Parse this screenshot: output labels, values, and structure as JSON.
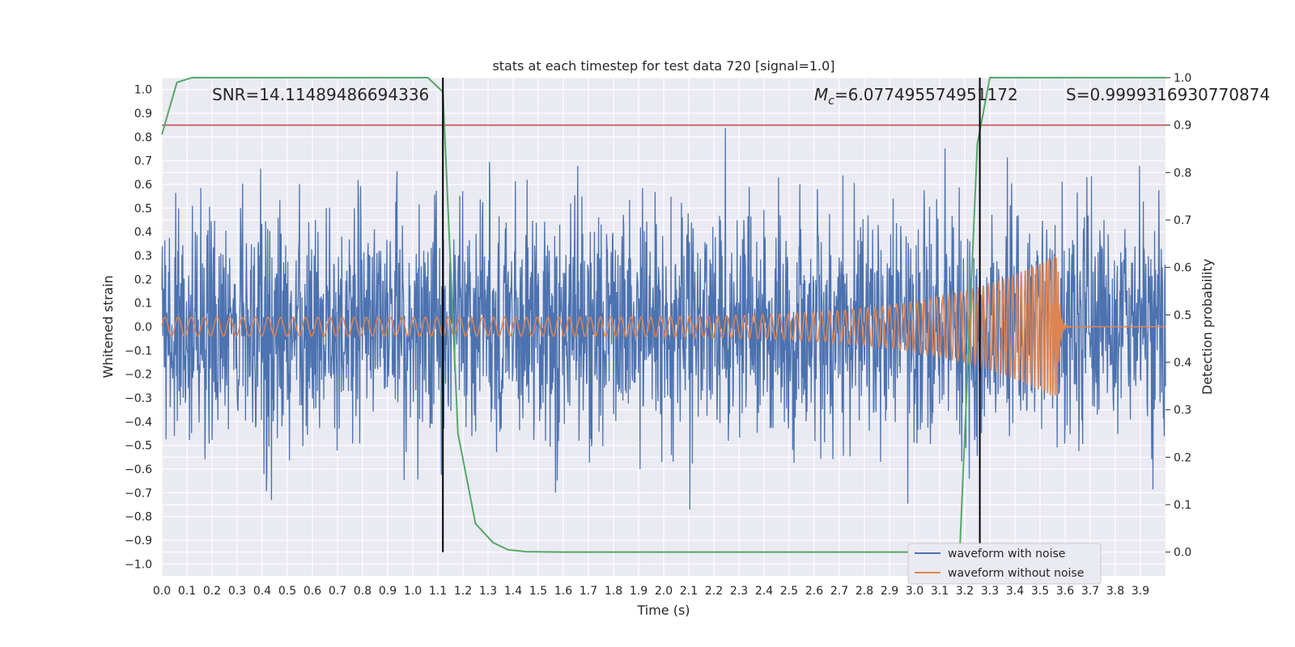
{
  "chart_data": {
    "type": "line",
    "title": "stats at each timestep for test data 720 [signal=1.0]",
    "xlabel": "Time (s)",
    "ylabel_left": "Whitened strain",
    "ylabel_right": "Detection probability",
    "xlim": [
      0.0,
      4.0
    ],
    "ylim_left": [
      -1.05,
      1.05
    ],
    "ylim_right": [
      -0.05,
      1.0
    ],
    "x_ticks": [
      "0.0",
      "0.1",
      "0.2",
      "0.3",
      "0.4",
      "0.5",
      "0.6",
      "0.7",
      "0.8",
      "0.9",
      "1.0",
      "1.1",
      "1.2",
      "1.3",
      "1.4",
      "1.5",
      "1.6",
      "1.7",
      "1.8",
      "1.9",
      "2.0",
      "2.1",
      "2.2",
      "2.3",
      "2.4",
      "2.5",
      "2.6",
      "2.7",
      "2.8",
      "2.9",
      "3.0",
      "3.1",
      "3.2",
      "3.3",
      "3.4",
      "3.5",
      "3.6",
      "3.7",
      "3.8",
      "3.9"
    ],
    "y_ticks_left": [
      "1.0",
      "0.9",
      "0.8",
      "0.7",
      "0.6",
      "0.5",
      "0.4",
      "0.3",
      "0.2",
      "0.1",
      "0.0",
      "−0.1",
      "−0.2",
      "−0.3",
      "−0.4",
      "−0.5",
      "−0.6",
      "−0.7",
      "−0.8",
      "−0.9",
      "−1.0"
    ],
    "y_ticks_right": [
      "1.0",
      "0.9",
      "0.8",
      "0.7",
      "0.6",
      "0.5",
      "0.4",
      "0.3",
      "0.2",
      "0.1",
      "0.0"
    ],
    "grid": true,
    "legend_position": "bottom-right",
    "annotations": {
      "snr": "SNR=14.11489486694336",
      "mc_symbol": "M",
      "mc_sub": "c",
      "mc_value": "=6.077495574951172",
      "s": "S=0.9999316930770874"
    },
    "series": [
      {
        "name": "waveform with noise",
        "color": "#4c72b0",
        "axis": "left",
        "noise_amplitude": 0.45,
        "peak_value": 1.0
      },
      {
        "name": "waveform without noise",
        "color": "#dd8452",
        "axis": "left",
        "envelope_start": 0.04,
        "envelope_peak": 0.32,
        "peak_time": 3.57
      },
      {
        "color": "#55a868",
        "axis": "right",
        "x": [
          0.0,
          0.06,
          0.12,
          0.2,
          1.06,
          1.12,
          1.18,
          1.25,
          1.32,
          1.38,
          1.45,
          1.6,
          3.05,
          3.18,
          3.25,
          3.3,
          4.0
        ],
        "y": [
          0.88,
          0.99,
          1.0,
          1.0,
          1.0,
          0.97,
          0.25,
          0.06,
          0.02,
          0.005,
          0.001,
          0.0,
          0.0,
          0.0,
          0.86,
          1.0,
          1.0
        ]
      }
    ],
    "threshold": {
      "color": "#c44e52",
      "axis": "right",
      "value": 0.9
    },
    "vertical_markers": [
      1.12,
      3.26
    ]
  }
}
